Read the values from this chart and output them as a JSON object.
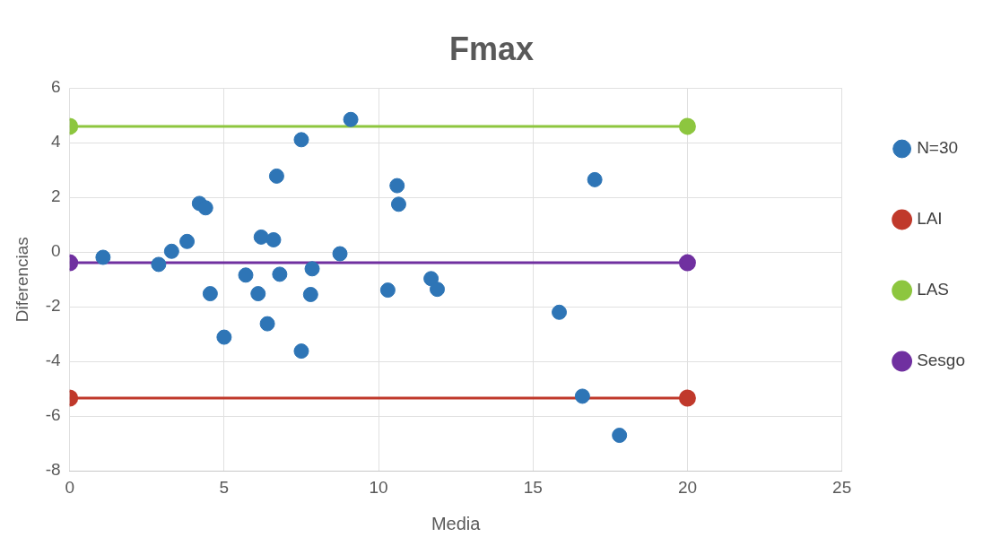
{
  "chart_data": {
    "type": "scatter",
    "title": "Fmax",
    "xlabel": "Media",
    "ylabel": "Diferencias",
    "xlim": [
      0,
      25
    ],
    "xticks": [
      0,
      5,
      10,
      15,
      20,
      25
    ],
    "ylim": [
      -8,
      6
    ],
    "yticks": [
      -8,
      -6,
      -4,
      -2,
      0,
      2,
      4,
      6
    ],
    "grid": true,
    "legend": "right",
    "marker": "circle",
    "series": [
      {
        "name": "N=30",
        "color": "#2e75b6",
        "x": [
          1.08,
          2.88,
          3.3,
          3.8,
          4.2,
          4.4,
          4.55,
          5.0,
          5.7,
          6.1,
          6.2,
          6.4,
          6.6,
          6.7,
          6.8,
          7.5,
          7.5,
          7.85,
          7.8,
          8.75,
          9.1,
          10.3,
          10.6,
          10.65,
          11.7,
          11.9,
          15.85,
          17.0,
          16.6,
          17.8
        ],
        "values": [
          -0.19,
          -0.45,
          0.03,
          0.39,
          1.78,
          1.62,
          -1.52,
          -3.11,
          -0.84,
          -1.52,
          0.55,
          -2.62,
          0.45,
          2.78,
          -0.81,
          -3.62,
          4.11,
          -0.61,
          -1.55,
          -0.06,
          4.85,
          -1.39,
          2.43,
          1.75,
          -0.97,
          -1.36,
          -2.2,
          2.65,
          -5.27,
          -6.7
        ]
      },
      {
        "name": "LAI",
        "type": "line",
        "color": "#c0392b",
        "x": [
          0,
          20
        ],
        "values": [
          -5.34,
          -5.34
        ]
      },
      {
        "name": "LAS",
        "type": "line",
        "color": "#8dc63f",
        "x": [
          0,
          20
        ],
        "values": [
          4.6,
          4.6
        ]
      },
      {
        "name": "Sesgo",
        "type": "line",
        "color": "#7030a0",
        "x": [
          0,
          20
        ],
        "values": [
          -0.39,
          -0.39
        ]
      }
    ]
  }
}
